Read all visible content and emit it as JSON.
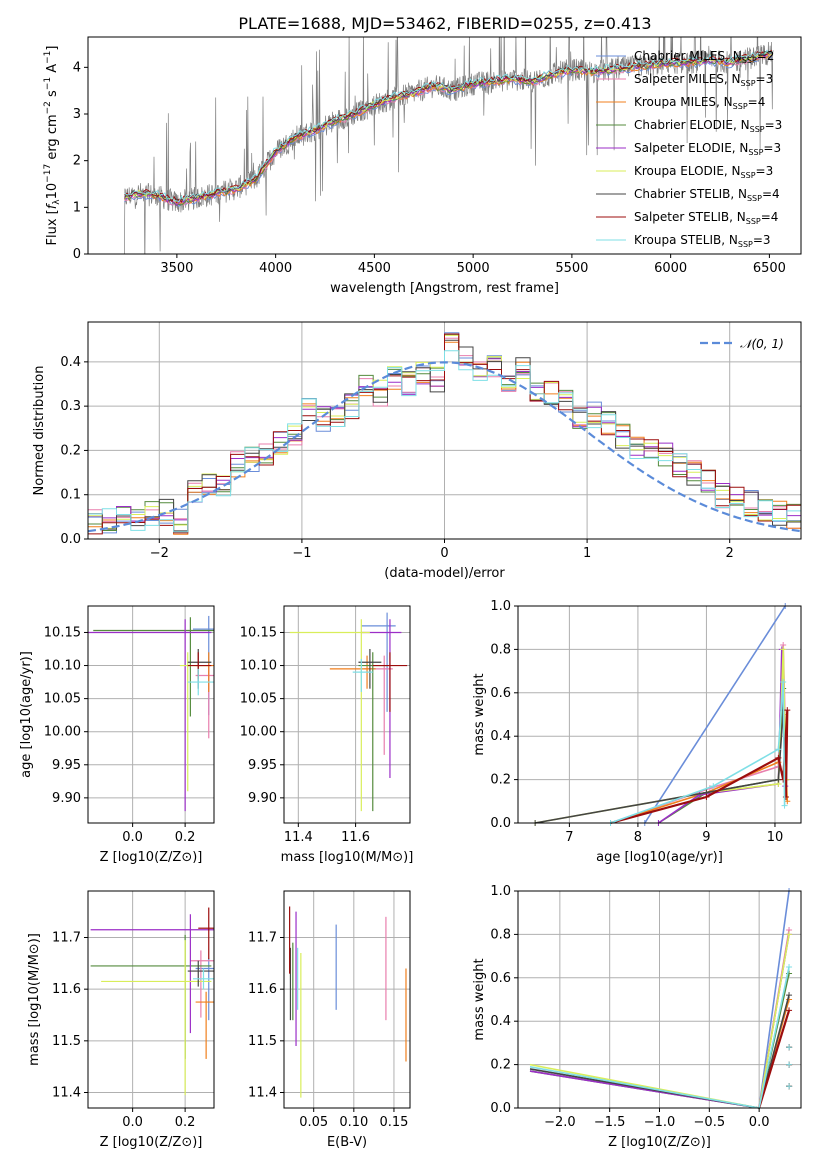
{
  "colors": {
    "Chabrier MILES": "#6a8dd9",
    "Salpeter MILES": "#e87fae",
    "Kroupa MILES": "#f07f1c",
    "Chabrier ELODIE": "#548b3d",
    "Salpeter ELODIE": "#9b2ec7",
    "Kroupa ELODIE": "#d9ee5a",
    "Chabrier STELIB": "#444444",
    "Salpeter STELIB": "#9c0d0d",
    "Kroupa STELIB": "#7fdfe6",
    "data": "#7f7f7f",
    "normal": "#5b8bd9"
  },
  "chart_data": [
    {
      "type": "line",
      "title": "PLATE=1688, MJD=53462, FIBERID=0255, z=0.413",
      "xlabel": "wavelength [Angstrom, rest frame]",
      "ylabel": "Flux [f_λ 10^-17 erg cm^-2 s^-1 A^-1]",
      "xlim": [
        3050,
        6660
      ],
      "ylim": [
        0,
        4.65
      ],
      "xticks": [
        3500,
        4000,
        4500,
        5000,
        5500,
        6000,
        6500
      ],
      "yticks": [
        0,
        1,
        2,
        3,
        4
      ],
      "legend_position": "upper right",
      "legend": [
        "Chabrier MILES, N_SSP=2",
        "Salpeter MILES, N_SSP=3",
        "Kroupa MILES, N_SSP=4",
        "Chabrier ELODIE, N_SSP=3",
        "Salpeter ELODIE, N_SSP=3",
        "Kroupa ELODIE, N_SSP=3",
        "Chabrier STELIB, N_SSP=4",
        "Salpeter STELIB, N_SSP=4",
        "Kroupa STELIB, N_SSP=3"
      ],
      "continuum": {
        "x": [
          3230,
          3300,
          3400,
          3500,
          3600,
          3700,
          3800,
          3900,
          3950,
          4000,
          4100,
          4200,
          4300,
          4400,
          4500,
          4600,
          4700,
          4800,
          4900,
          5000,
          5100,
          5200,
          5300,
          5400,
          5500,
          5600,
          5700,
          5800,
          5900,
          6000,
          6100,
          6200,
          6300,
          6400,
          6500
        ],
        "y": [
          1.2,
          1.3,
          1.25,
          1.1,
          1.2,
          1.3,
          1.4,
          1.6,
          1.9,
          2.2,
          2.5,
          2.65,
          2.85,
          3.0,
          3.2,
          3.35,
          3.45,
          3.6,
          3.5,
          3.65,
          3.7,
          3.75,
          3.7,
          3.85,
          3.95,
          3.9,
          3.95,
          4.0,
          4.05,
          4.1,
          4.1,
          4.15,
          4.1,
          4.2,
          4.3
        ]
      },
      "data_x_range": [
        3230,
        6520
      ]
    },
    {
      "type": "bar",
      "xlabel": "(data-model)/error",
      "ylabel": "Normed distribution",
      "xlim": [
        -2.5,
        2.5
      ],
      "ylim": [
        0,
        0.49
      ],
      "xticks": [
        -2,
        -1,
        0,
        1,
        2
      ],
      "yticks": [
        0.0,
        0.1,
        0.2,
        0.3,
        0.4
      ],
      "legend": [
        "N(0,1)"
      ],
      "bins": [
        -2.5,
        -2.4,
        -2.3,
        -2.2,
        -2.1,
        -2.0,
        -1.9,
        -1.8,
        -1.7,
        -1.6,
        -1.5,
        -1.4,
        -1.3,
        -1.2,
        -1.1,
        -1.0,
        -0.9,
        -0.8,
        -0.7,
        -0.6,
        -0.5,
        -0.4,
        -0.3,
        -0.2,
        -0.1,
        0.0,
        0.1,
        0.2,
        0.3,
        0.4,
        0.5,
        0.6,
        0.7,
        0.8,
        0.9,
        1.0,
        1.1,
        1.2,
        1.3,
        1.4,
        1.5,
        1.6,
        1.7,
        1.8,
        1.9,
        2.0,
        2.1,
        2.2,
        2.3,
        2.4,
        2.5
      ],
      "hist": [
        0.04,
        0.04,
        0.05,
        0.04,
        0.06,
        0.06,
        0.04,
        0.11,
        0.12,
        0.12,
        0.17,
        0.18,
        0.19,
        0.22,
        0.24,
        0.29,
        0.27,
        0.28,
        0.3,
        0.35,
        0.33,
        0.36,
        0.35,
        0.38,
        0.36,
        0.44,
        0.41,
        0.37,
        0.39,
        0.35,
        0.38,
        0.34,
        0.33,
        0.31,
        0.27,
        0.28,
        0.26,
        0.23,
        0.21,
        0.2,
        0.19,
        0.17,
        0.15,
        0.13,
        0.1,
        0.09,
        0.08,
        0.06,
        0.06,
        0.05
      ]
    },
    {
      "type": "scatter",
      "xlabel": "Z [log10(Z/Z⊙)]",
      "ylabel": "age [log10(age/yr)]",
      "xlim": [
        -0.17,
        0.31
      ],
      "ylim": [
        9.862,
        10.19
      ],
      "xticks": [
        "0.0",
        "0.2"
      ],
      "yticks": [
        "10.15",
        "10.10",
        "10.05",
        "10.00",
        "9.95",
        "9.90"
      ]
    },
    {
      "type": "scatter",
      "xlabel": "mass [log10(M/M⊙)]",
      "ylabel": "",
      "xlim": [
        11.35,
        11.79
      ],
      "ylim": [
        9.862,
        10.19
      ],
      "xticks": [
        "11.4",
        "11.6"
      ],
      "yticks": [
        "10.15",
        "10.10",
        "10.05",
        "10.00",
        "9.95",
        "9.90"
      ]
    },
    {
      "type": "line",
      "xlabel": "age [log10(age/yr)]",
      "ylabel": "mass weight",
      "xlim": [
        6.25,
        10.38
      ],
      "ylim": [
        0,
        1.0
      ],
      "xticks": [
        "7",
        "8",
        "9",
        "10"
      ],
      "yticks": [
        "0.0",
        "0.2",
        "0.4",
        "0.6",
        "0.8",
        "1.0"
      ]
    },
    {
      "type": "scatter",
      "xlabel": "Z [log10(Z/Z⊙)]",
      "ylabel": "mass [log10(M/M⊙)]",
      "xlim": [
        -0.17,
        0.31
      ],
      "ylim": [
        11.37,
        11.79
      ],
      "xticks": [
        "0.0",
        "0.2"
      ],
      "yticks": [
        "11.7",
        "11.6",
        "11.5",
        "11.4"
      ]
    },
    {
      "type": "scatter",
      "xlabel": "E(B-V)",
      "ylabel": "",
      "xlim": [
        0.013,
        0.17
      ],
      "ylim": [
        11.37,
        11.79
      ],
      "xticks": [
        "0.05",
        "0.10",
        "0.15"
      ],
      "yticks": [
        "11.7",
        "11.6",
        "11.5",
        "11.4"
      ]
    },
    {
      "type": "line",
      "xlabel": "Z [log10(Z/Z⊙)]",
      "ylabel": "mass weight",
      "xlim": [
        -2.42,
        0.42
      ],
      "ylim": [
        0,
        1.0
      ],
      "xticks": [
        "−2.0",
        "−1.5",
        "−1.0",
        "−0.5",
        "0.0"
      ],
      "yticks": [
        "0.0",
        "0.2",
        "0.4",
        "0.6",
        "0.8",
        "1.0"
      ]
    }
  ]
}
